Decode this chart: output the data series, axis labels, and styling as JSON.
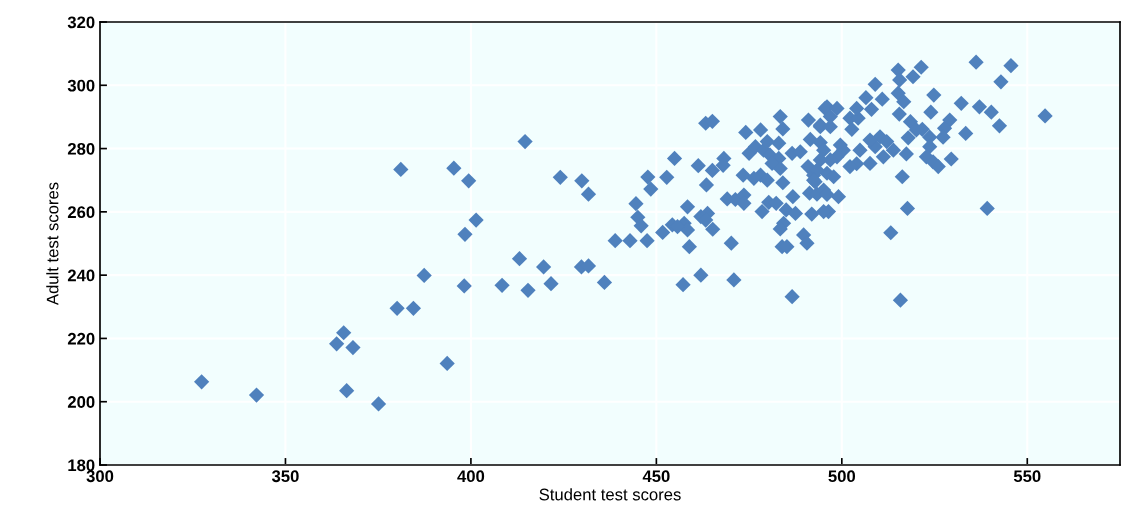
{
  "chart_data": {
    "type": "scatter",
    "xlabel": "Student test scores",
    "ylabel": "Adult test scores",
    "xlim": [
      300,
      575
    ],
    "xticks": [
      300,
      350,
      400,
      450,
      500,
      550
    ],
    "ylim": [
      180,
      320
    ],
    "yticks": [
      180,
      200,
      220,
      240,
      260,
      280,
      300,
      320
    ],
    "grid": true,
    "marker": "diamond",
    "series": [
      {
        "color": "#4f81bd",
        "x": [
          327.4,
          342.2,
          381.1,
          395.4,
          399.4,
          414.6,
          424.1,
          429.9,
          431.7,
          401.4,
          398.4,
          413.1,
          419.6,
          429.8,
          431.7,
          387.4,
          398.2,
          408.4,
          415.4,
          421.6,
          380.1,
          384.5,
          365.7,
          363.8,
          368.2,
          393.6,
          366.5,
          375.1,
          436,
          438.9,
          442.9,
          447.5,
          444.5,
          447.7,
          448.5,
          445,
          445.9,
          452.8,
          454.9,
          451.7,
          454.3,
          457.5,
          458.4,
          458.4,
          455.7,
          458.9,
          457.2,
          462,
          461.3,
          463.5,
          465.1,
          463.3,
          465.1,
          462,
          463.8,
          463.3,
          465.2,
          468.2,
          468,
          470.2,
          470.9,
          469.1,
          471.3,
          473.6,
          473.6,
          473.4,
          474.1,
          478.1,
          475,
          476.7,
          478.9,
          478.1,
          479.9,
          476.3,
          480.6,
          483,
          481.2,
          483.4,
          483.4,
          484.1,
          484.1,
          478.5,
          480.3,
          482.3,
          486.8,
          485,
          487.5,
          484.3,
          483.4,
          483.9,
          485.2,
          489.7,
          490.6,
          486.6,
          491.9,
          491.3,
          493.3,
          490.9,
          492.4,
          492.8,
          486.6,
          488.8,
          491,
          494.2,
          491.5,
          494.2,
          495.5,
          483,
          479.9,
          496,
          498.7,
          496.9,
          494.2,
          496.9,
          502.2,
          504.4,
          504,
          502.7,
          506.5,
          508,
          509,
          510.9,
          515.2,
          515.6,
          519.2,
          521.4,
          515.2,
          516.7,
          515.5,
          518.5,
          524.8,
          524,
          532.2,
          537.1,
          540.3,
          542.5,
          533.4,
          529.1,
          527.7,
          521.7,
          520.1,
          517.9,
          523.7,
          527.3,
          523.7,
          522.8,
          524.6,
          526,
          517.4,
          529.5,
          536.2,
          545.6,
          542.9,
          554.8,
          516.3,
          517.7,
          539.2,
          513.2,
          515.8,
          510.3,
          512.1,
          513.9,
          509,
          507.6,
          511.2,
          507.6,
          504.9,
          504,
          502.2,
          500.4,
          499.6,
          498.7,
          496.9,
          495.1,
          494.2,
          496,
          497.8,
          495.1,
          499.1,
          496.4,
          493.3,
          492.4,
          495.1,
          496
        ],
        "values": [
          206.3,
          202.1,
          273.4,
          273.8,
          269.8,
          282.2,
          270.9,
          269.8,
          265.6,
          257.4,
          252.9,
          245.2,
          242.6,
          242.6,
          242.9,
          239.9,
          236.6,
          236.8,
          235.2,
          237.3,
          229.5,
          229.5,
          221.8,
          218.3,
          217.1,
          212.1,
          203.5,
          199.3,
          237.7,
          250.9,
          250.9,
          250.9,
          262.6,
          271,
          267.2,
          258.3,
          255.6,
          270.9,
          276.9,
          253.5,
          255.9,
          256.4,
          261.6,
          254.3,
          255.3,
          249,
          237,
          240,
          274.6,
          268.5,
          273.1,
          288,
          288.6,
          258.5,
          259.5,
          257.4,
          254.5,
          276.9,
          274.7,
          250.1,
          238.5,
          264.1,
          263.9,
          265.3,
          262.7,
          271.6,
          285.1,
          285.9,
          278.5,
          280.6,
          279.5,
          271.6,
          270,
          270.6,
          278,
          276.9,
          275.3,
          273.7,
          290.1,
          286.2,
          269.2,
          260.1,
          263,
          262.7,
          264.8,
          260.6,
          259.5,
          256.4,
          254.6,
          249,
          249,
          252.7,
          250.1,
          233.2,
          259.3,
          265.9,
          265.6,
          274.3,
          271.6,
          269.5,
          278.5,
          279,
          289,
          286.9,
          282.9,
          281.9,
          292.7,
          281.7,
          282.2,
          293.2,
          292.7,
          290.1,
          287.4,
          286.9,
          289.6,
          289.6,
          292.7,
          286.1,
          296.1,
          292.4,
          300.3,
          295.6,
          304.8,
          301.7,
          302.7,
          305.7,
          297.5,
          294.8,
          290.9,
          288.5,
          296.9,
          291.5,
          294.3,
          293.2,
          291.5,
          287.2,
          284.8,
          289,
          286.4,
          286.1,
          285.9,
          283.4,
          283.6,
          283.6,
          280.6,
          277.4,
          275.8,
          274.3,
          278.3,
          276.7,
          307.3,
          306.2,
          301.1,
          290.3,
          271.1,
          261.1,
          261.1,
          253.4,
          232.1,
          283.7,
          282.2,
          279.5,
          280.6,
          282.7,
          277.4,
          275.3,
          279.5,
          275.2,
          274.3,
          279.5,
          281.1,
          277.4,
          276.4,
          279.5,
          276.4,
          272.2,
          271.1,
          266.9,
          264.8,
          260.1,
          273.2,
          270,
          260.1,
          265.5
        ]
      }
    ]
  }
}
